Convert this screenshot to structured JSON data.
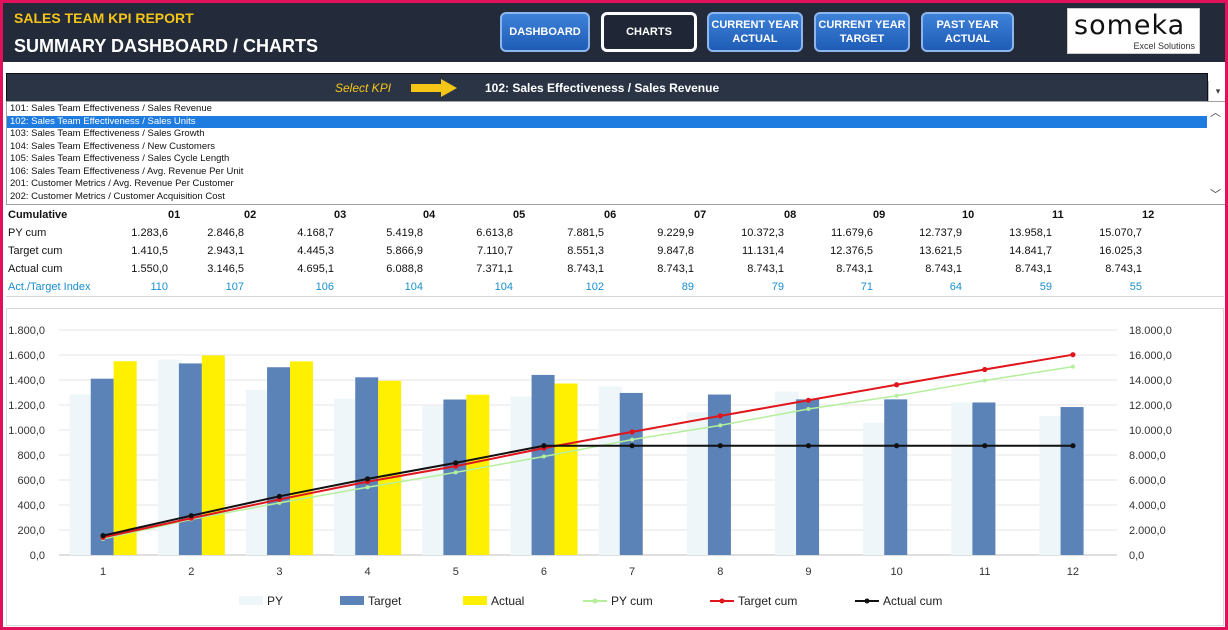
{
  "header": {
    "report_title": "SALES TEAM KPI REPORT",
    "page_title": "SUMMARY DASHBOARD / CHARTS",
    "nav": [
      "DASHBOARD",
      "CHARTS",
      "CURRENT YEAR\nACTUAL",
      "CURRENT YEAR\nTARGET",
      "PAST YEAR\nACTUAL"
    ],
    "active_nav": "CHARTS"
  },
  "logo": {
    "name": "someka",
    "tagline": "Excel Solutions"
  },
  "kpi_selector": {
    "label": "Select KPI",
    "value": "102: Sales Effectiveness / Sales Revenue",
    "options": [
      "101: Sales Team Effectiveness / Sales Revenue",
      "102: Sales Team Effectiveness / Sales Units",
      "103: Sales Team Effectiveness / Sales Growth",
      "104: Sales Team Effectiveness / New Customers",
      "105: Sales Team Effectiveness / Sales Cycle Length",
      "106: Sales Team Effectiveness / Avg. Revenue Per Unit",
      "201: Customer Metrics / Avg. Revenue Per Customer",
      "202: Customer Metrics / Customer Acquisition Cost"
    ],
    "highlighted_option": "102: Sales Team Effectiveness / Sales Units"
  },
  "table": {
    "corner": "Cumulative",
    "months": [
      "01",
      "02",
      "03",
      "04",
      "05",
      "06",
      "07",
      "08",
      "09",
      "10",
      "11",
      "12"
    ],
    "rows": [
      {
        "label": "PY cum",
        "values": [
          "1.283,6",
          "2.846,8",
          "4.168,7",
          "5.419,8",
          "6.613,8",
          "7.881,5",
          "9.229,9",
          "10.372,3",
          "11.679,6",
          "12.737,9",
          "13.958,1",
          "15.070,7"
        ]
      },
      {
        "label": "Target cum",
        "values": [
          "1.410,5",
          "2.943,1",
          "4.445,3",
          "5.866,9",
          "7.110,7",
          "8.551,3",
          "9.847,8",
          "11.131,4",
          "12.376,5",
          "13.621,5",
          "14.841,7",
          "16.025,3"
        ]
      },
      {
        "label": "Actual cum",
        "values": [
          "1.550,0",
          "3.146,5",
          "4.695,1",
          "6.088,8",
          "7.371,1",
          "8.743,1",
          "8.743,1",
          "8.743,1",
          "8.743,1",
          "8.743,1",
          "8.743,1",
          "8.743,1"
        ]
      },
      {
        "label": "Act./Target Index",
        "values": [
          "110",
          "107",
          "106",
          "104",
          "104",
          "102",
          "89",
          "79",
          "71",
          "64",
          "59",
          "55"
        ]
      }
    ]
  },
  "chart_data": {
    "type": "bar",
    "categories": [
      "1",
      "2",
      "3",
      "4",
      "5",
      "6",
      "7",
      "8",
      "9",
      "10",
      "11",
      "12"
    ],
    "y_left_ticks": [
      "0,0",
      "200,0",
      "400,0",
      "600,0",
      "800,0",
      "1.000,0",
      "1.200,0",
      "1.400,0",
      "1.600,0",
      "1.800,0"
    ],
    "y_right_ticks": [
      "0,0",
      "2.000,0",
      "4.000,0",
      "6.000,0",
      "8.000,0",
      "10.000,0",
      "12.000,0",
      "14.000,0",
      "16.000,0",
      "18.000,0"
    ],
    "ylim_left": [
      0,
      1800
    ],
    "ylim_right": [
      0,
      18000
    ],
    "series": [
      {
        "name": "PY",
        "kind": "bar",
        "axis": "left",
        "color": "#eef6fa",
        "values": [
          1283.6,
          1563.2,
          1321.9,
          1251.1,
          1194.0,
          1267.7,
          1348.4,
          1142.4,
          1307.3,
          1058.3,
          1220.2,
          1112.6
        ]
      },
      {
        "name": "Target",
        "kind": "bar",
        "axis": "left",
        "color": "#5b83b8",
        "values": [
          1410.5,
          1532.6,
          1502.2,
          1421.6,
          1243.8,
          1440.6,
          1296.5,
          1283.6,
          1245.1,
          1245.0,
          1220.2,
          1183.6
        ]
      },
      {
        "name": "Actual",
        "kind": "bar",
        "axis": "left",
        "color": "#ffef00",
        "values": [
          1550.0,
          1596.5,
          1548.6,
          1393.7,
          1282.3,
          1372.0,
          0,
          0,
          0,
          0,
          0,
          0
        ]
      },
      {
        "name": "PY cum",
        "kind": "line",
        "axis": "right",
        "color": "#b5ef9c",
        "values": [
          1283.6,
          2846.8,
          4168.7,
          5419.8,
          6613.8,
          7881.5,
          9229.9,
          10372.3,
          11679.6,
          12737.9,
          13958.1,
          15070.7
        ]
      },
      {
        "name": "Target cum",
        "kind": "line",
        "axis": "right",
        "color": "#e0161c",
        "values": [
          1410.5,
          2943.1,
          4445.3,
          5866.9,
          7110.7,
          8551.3,
          9847.8,
          11131.4,
          12376.5,
          13621.5,
          14841.7,
          16025.3
        ]
      },
      {
        "name": "Actual cum",
        "kind": "line",
        "axis": "right",
        "color": "#111111",
        "values": [
          1550.0,
          3146.5,
          4695.1,
          6088.8,
          7371.1,
          8743.1,
          8743.1,
          8743.1,
          8743.1,
          8743.1,
          8743.1,
          8743.1
        ]
      }
    ],
    "legend_position": "bottom",
    "grid": true
  }
}
